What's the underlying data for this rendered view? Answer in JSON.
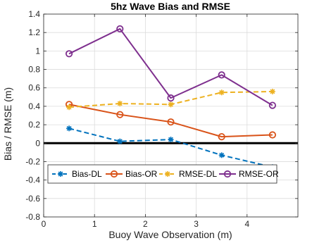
{
  "chart_data": {
    "type": "line",
    "title": "5hz Wave Bias and RMSE",
    "xlabel": "Buoy Wave Observation (m)",
    "ylabel": "Bias / RMSE (m)",
    "xlim": [
      0,
      5
    ],
    "ylim": [
      -0.8,
      1.4
    ],
    "xticks": [
      0,
      1,
      2,
      3,
      4
    ],
    "yticks": [
      -0.8,
      -0.6,
      -0.4,
      -0.2,
      0,
      0.2,
      0.4,
      0.6,
      0.8,
      1,
      1.2,
      1.4
    ],
    "x": [
      0.5,
      1.5,
      2.5,
      3.5,
      4.5
    ],
    "grid": true,
    "zero_line": true,
    "legend_position": "bottom",
    "series": [
      {
        "name": "Bias-DL",
        "values": [
          0.16,
          0.02,
          0.04,
          -0.13,
          -0.26
        ],
        "color": "#0072BD",
        "dash": true,
        "marker": "star"
      },
      {
        "name": "Bias-OR",
        "values": [
          0.42,
          0.31,
          0.23,
          0.07,
          0.09
        ],
        "color": "#D95319",
        "dash": false,
        "marker": "circle"
      },
      {
        "name": "RMSE-DL",
        "values": [
          0.39,
          0.43,
          0.42,
          0.55,
          0.56
        ],
        "color": "#EDB120",
        "dash": true,
        "marker": "star"
      },
      {
        "name": "RMSE-OR",
        "values": [
          0.97,
          1.24,
          0.49,
          0.74,
          0.41
        ],
        "color": "#7E2F8E",
        "dash": false,
        "marker": "circle"
      }
    ]
  }
}
